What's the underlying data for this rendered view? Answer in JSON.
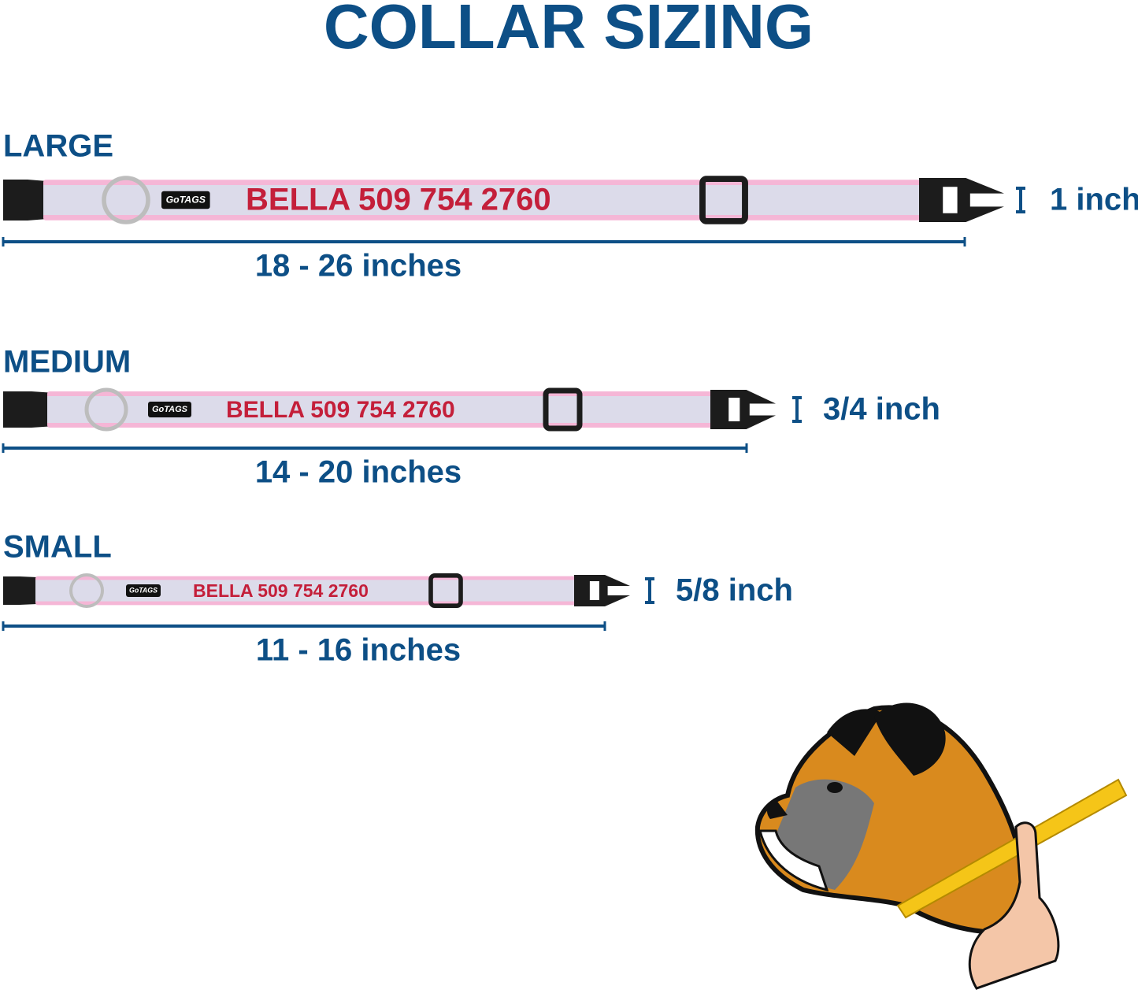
{
  "header": {
    "title": "COLLAR SIZING"
  },
  "sizes": [
    {
      "label": "LARGE",
      "engraving": "BELLA 509 754 2760",
      "brand": "GoTAGS",
      "length": "18 - 26 inches",
      "width": "1 inch"
    },
    {
      "label": "MEDIUM",
      "engraving": "BELLA 509 754 2760",
      "brand": "GoTAGS",
      "length": "14 - 20 inches",
      "width": "3/4 inch"
    },
    {
      "label": "SMALL",
      "engraving": "BELLA 509 754 2760",
      "brand": "GoTAGS",
      "length": "11 - 16 inches",
      "width": "5/8 inch"
    }
  ]
}
